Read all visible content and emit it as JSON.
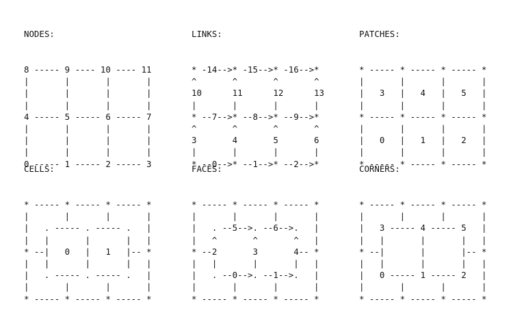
{
  "panels": {
    "nodes": {
      "title": "NODES:",
      "art": "8 ----- 9 ---- 10 ---- 11\n|       |       |       |\n|       |       |       |\n|       |       |       |\n4 ----- 5 ----- 6 ----- 7\n|       |       |       |\n|       |       |       |\n|       |       |       |\n0 ----- 1 ----- 2 ----- 3"
    },
    "links": {
      "title": "LINKS:",
      "art": "* -14-->* -15-->* -16-->*\n^       ^       ^       ^\n10      11      12      13\n|       |       |       |\n* --7-->* --8-->* --9-->*\n^       ^       ^       ^\n3       4       5       6\n|       |       |       |\n* --0-->* --1-->* --2-->*"
    },
    "patches": {
      "title": "PATCHES:",
      "art": "* ----- * ----- * ----- *\n|       |       |       |\n|   3   |   4   |   5   |\n|       |       |       |\n* ----- * ----- * ----- *\n|       |       |       |\n|   0   |   1   |   2   |\n|       |       |       |\n* ----- * ----- * ----- *"
    },
    "cells": {
      "title": "CELLS:",
      "art": "* ----- * ----- * ----- *\n|       |       |       |\n|   . ----- . ----- .   |\n|   |       |       |   |\n* --|   0   |   1   |-- *\n|   |       |       |   |\n|   . ----- . ----- .   |\n|       |       |       |\n* ----- * ----- * ----- *"
    },
    "faces": {
      "title": "FACES:",
      "art": "* ----- * ----- * ----- *\n|       |       |       |\n|   . --5-->. --6-->.   |\n|   ^       ^       ^   |\n* --2       3       4-- *\n|   |       |       |   |\n|   . --0-->. --1-->.   |\n|       |       |       |\n* ----- * ----- * ----- *"
    },
    "corners": {
      "title": "CORNERS:",
      "art": "* ----- * ----- * ----- *\n|       |       |       |\n|   3 ----- 4 ----- 5   |\n|   |       |       |   |\n* --|       |       |-- *\n|   |       |       |   |\n|   0 ----- 1 ----- 2   |\n|       |       |       |\n* ----- * ----- * ----- *"
    }
  }
}
